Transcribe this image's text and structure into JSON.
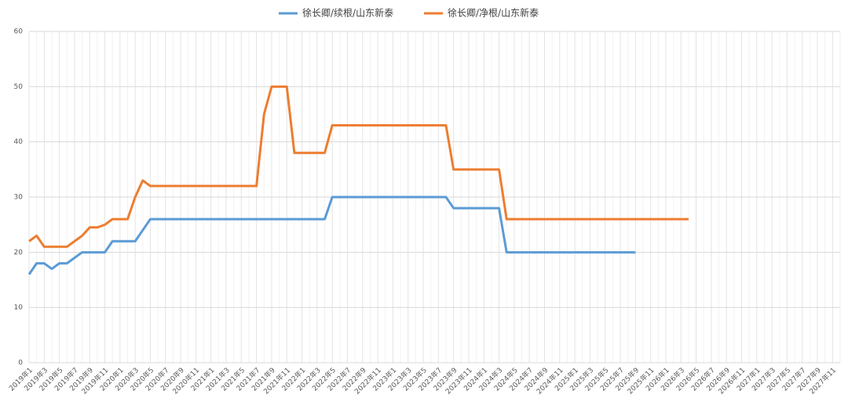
{
  "chart_data": {
    "type": "line",
    "categories": [
      "2019年1",
      null,
      "2019年3",
      null,
      "2019年5",
      null,
      "2019年7",
      null,
      "2019年9",
      null,
      "2019年11",
      null,
      "2020年1",
      null,
      "2020年3",
      null,
      "2020年5",
      null,
      "2020年7",
      null,
      "2020年9",
      null,
      "2020年11",
      null,
      "2021年1",
      null,
      "2021年3",
      null,
      "2021年5",
      null,
      "2021年7",
      null,
      "2021年9",
      null,
      "2021年11",
      null,
      "2022年1",
      null,
      "2022年3",
      null,
      "2022年5",
      null,
      "2022年7",
      null,
      "2022年9",
      null,
      "2022年11",
      null,
      "2023年1",
      null,
      "2023年3",
      null,
      "2023年5",
      null,
      "2023年7",
      null,
      "2023年9",
      null,
      "2023年11",
      null,
      "2024年1",
      null,
      "2024年3",
      null,
      "2024年5",
      null,
      "2024年7",
      null,
      "2024年9",
      null,
      "2024年11",
      null,
      "2025年1",
      null,
      "2025年3",
      null,
      "2025年5",
      null,
      "2025年7",
      null,
      "2025年9",
      null,
      "2025年11",
      null,
      "2026年1",
      null,
      "2026年3",
      null,
      "2026年5",
      null,
      "2026年7",
      null,
      "2026年9",
      null,
      "2026年11",
      null,
      "2027年1",
      null,
      "2027年3",
      null,
      "2027年5",
      null,
      "2027年7",
      null,
      "2027年9",
      null,
      "2027年11",
      null
    ],
    "series": [
      {
        "name": "徐长卿/续根/山东新泰",
        "color": "#5b9bd5",
        "values": [
          16,
          18,
          18,
          17,
          18,
          18,
          19,
          20,
          20,
          20,
          20,
          22,
          22,
          22,
          22,
          24,
          26,
          26,
          26,
          26,
          26,
          26,
          26,
          26,
          26,
          26,
          26,
          26,
          26,
          26,
          26,
          26,
          26,
          26,
          26,
          26,
          26,
          26,
          26,
          26,
          30,
          30,
          30,
          30,
          30,
          30,
          30,
          30,
          30,
          30,
          30,
          30,
          30,
          30,
          30,
          30,
          28,
          28,
          28,
          28,
          28,
          28,
          28,
          20,
          20,
          20,
          20,
          20,
          20,
          20,
          20,
          20,
          20,
          20,
          20,
          20,
          20,
          20,
          20,
          20,
          20,
          null,
          null,
          null,
          null,
          null,
          null,
          null,
          null,
          null,
          null,
          null,
          null,
          null,
          null,
          null,
          null,
          null,
          null,
          null,
          null,
          null,
          null,
          null,
          null,
          null,
          null,
          null
        ]
      },
      {
        "name": "徐长卿/净根/山东新泰",
        "color": "#ed7d31",
        "values": [
          22,
          23,
          21,
          21,
          21,
          21,
          22,
          23,
          24.5,
          24.5,
          25,
          26,
          26,
          26,
          30,
          33,
          32,
          32,
          32,
          32,
          32,
          32,
          32,
          32,
          32,
          32,
          32,
          32,
          32,
          32,
          32,
          45,
          50,
          50,
          50,
          38,
          38,
          38,
          38,
          38,
          43,
          43,
          43,
          43,
          43,
          43,
          43,
          43,
          43,
          43,
          43,
          43,
          43,
          43,
          43,
          43,
          35,
          35,
          35,
          35,
          35,
          35,
          35,
          26,
          26,
          26,
          26,
          26,
          26,
          26,
          26,
          26,
          26,
          26,
          26,
          26,
          26,
          26,
          26,
          26,
          26,
          26,
          26,
          26,
          26,
          26,
          26,
          26,
          null,
          null,
          null,
          null,
          null,
          null,
          null,
          null,
          null,
          null,
          null,
          null,
          null,
          null,
          null,
          null,
          null,
          null,
          null,
          null
        ]
      }
    ],
    "ylim": [
      0,
      60
    ],
    "yticks": [
      0,
      10,
      20,
      30,
      40,
      50,
      60
    ],
    "grid": true,
    "legend": "top"
  }
}
